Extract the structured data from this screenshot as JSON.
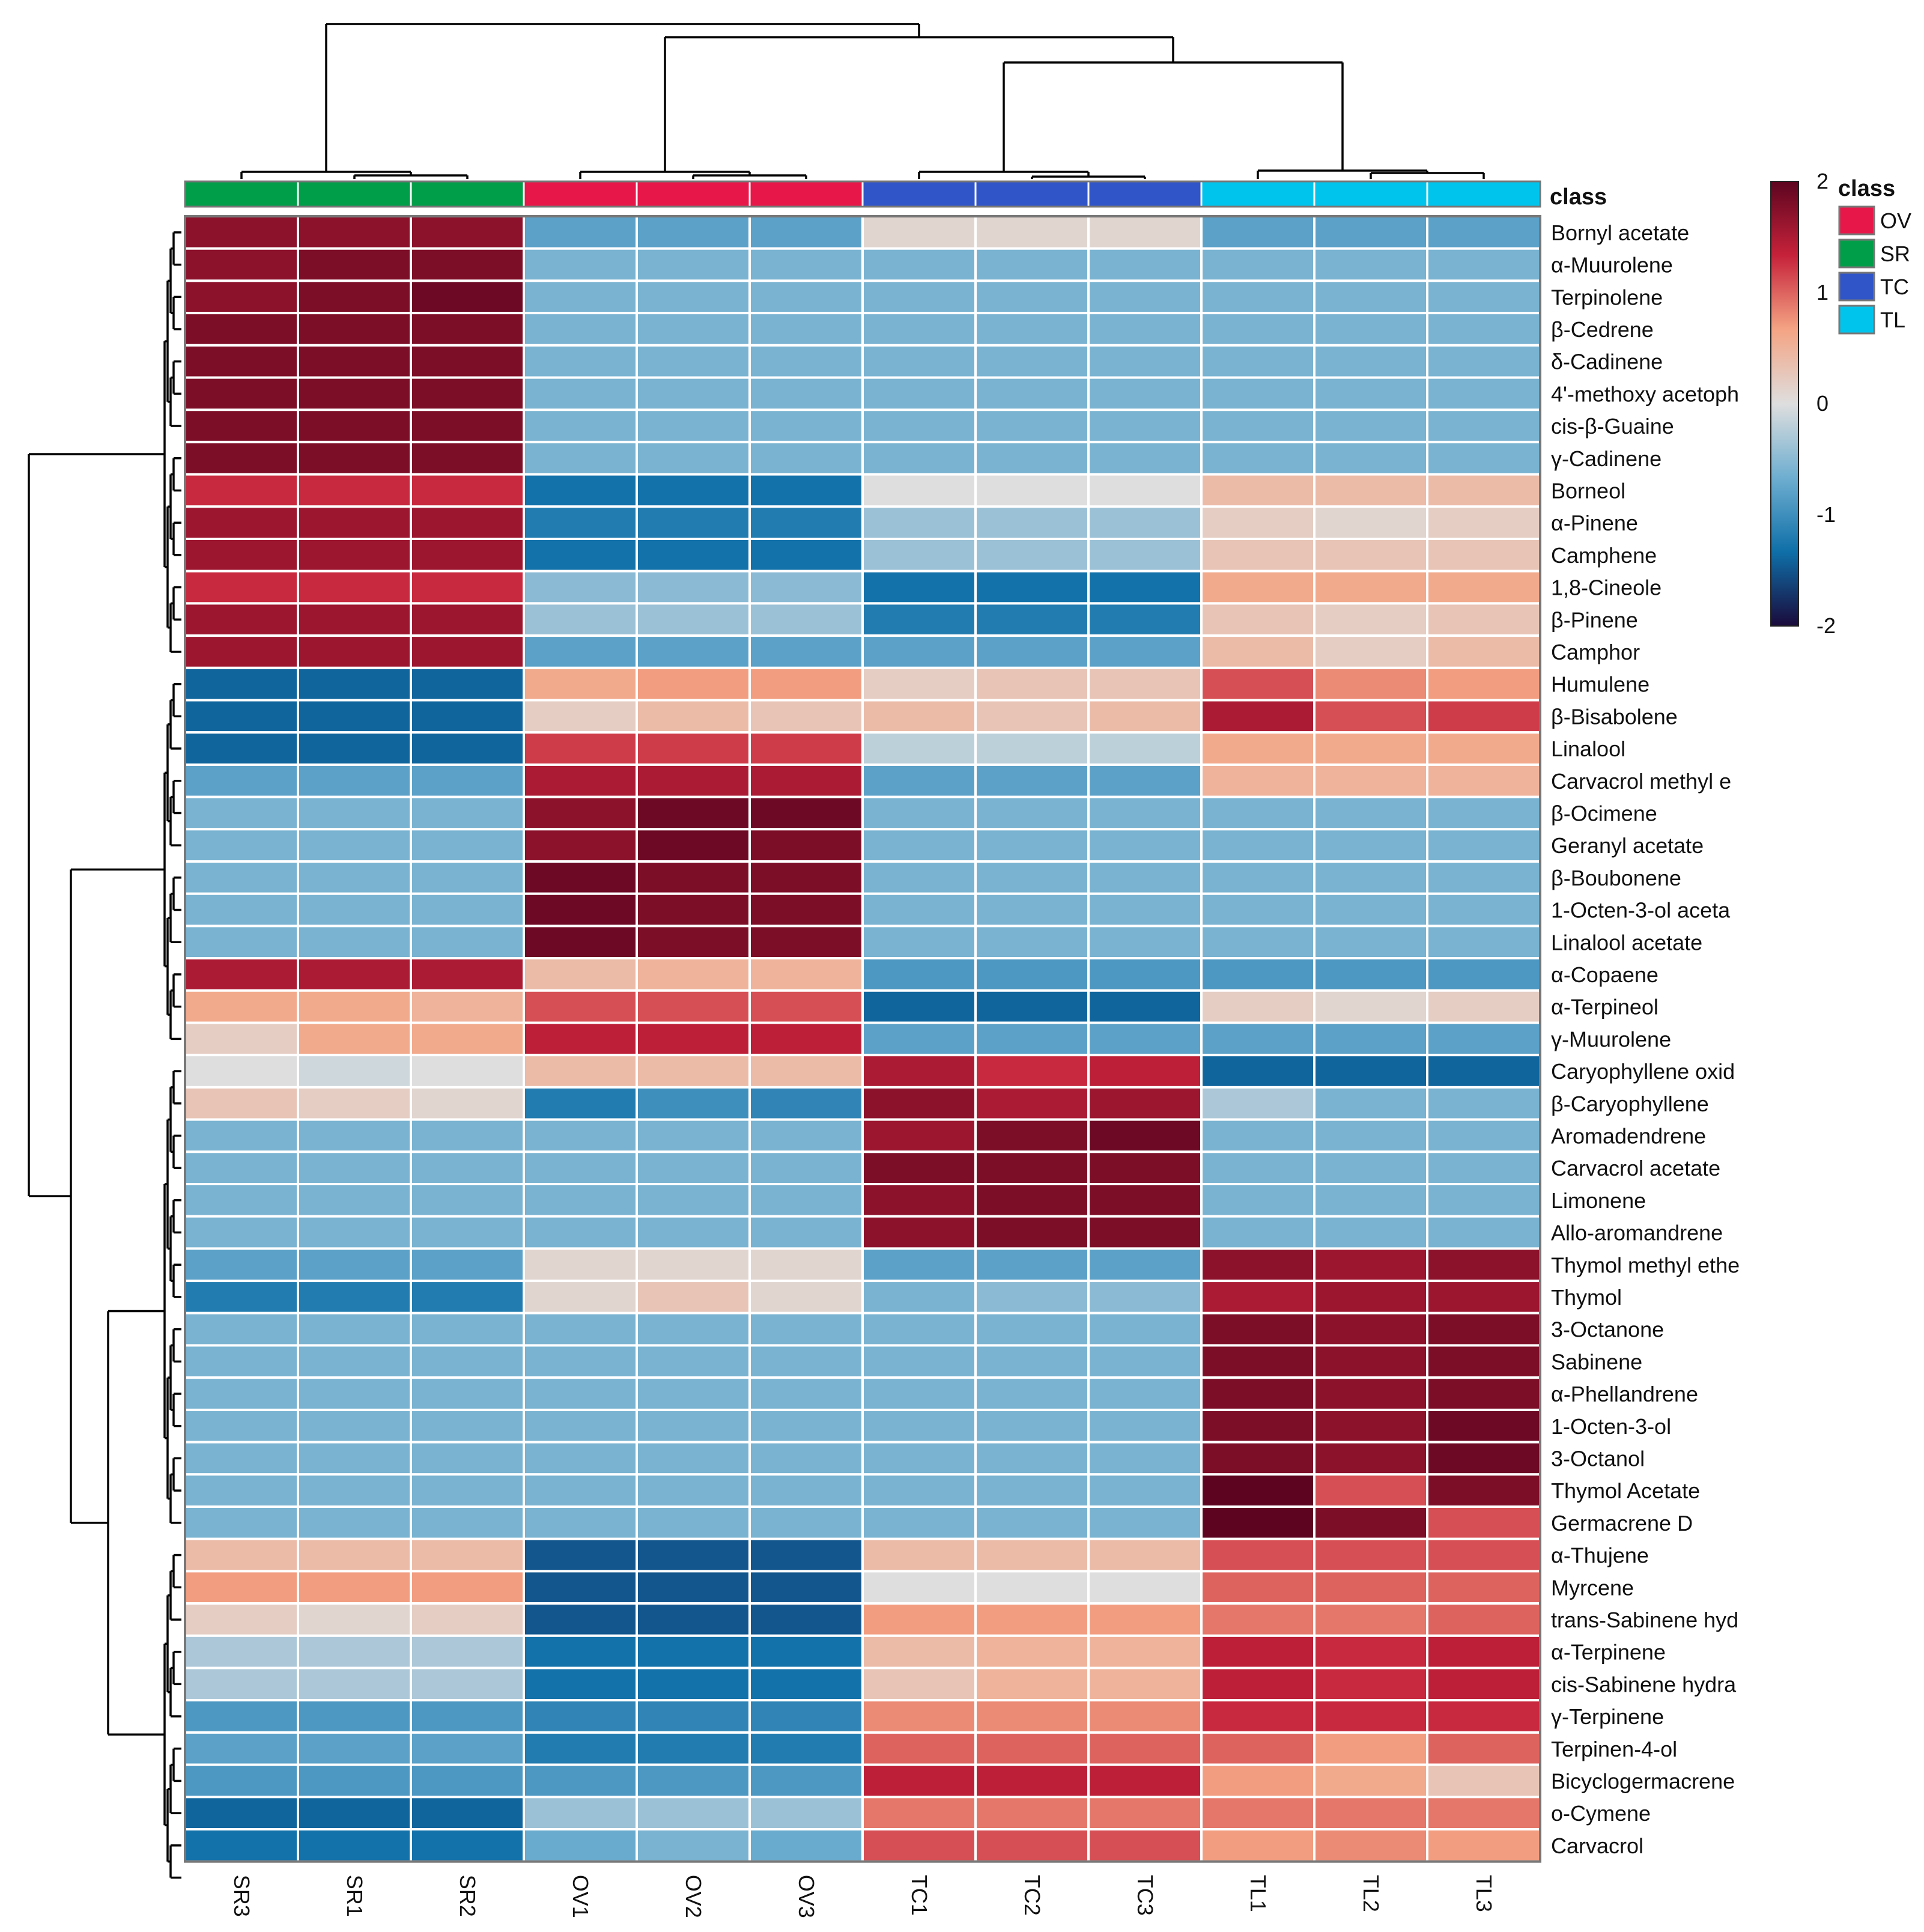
{
  "chart_data": {
    "type": "heatmap",
    "title": "",
    "xlabel": "",
    "ylabel": "",
    "class_annotation_label": "class",
    "columns": [
      "SR3",
      "SR1",
      "SR2",
      "OV1",
      "OV2",
      "OV3",
      "TC1",
      "TC2",
      "TC3",
      "TL1",
      "TL2",
      "TL3"
    ],
    "column_classes": [
      "SR",
      "SR",
      "SR",
      "OV",
      "OV",
      "OV",
      "TC",
      "TC",
      "TC",
      "TL",
      "TL",
      "TL"
    ],
    "class_legend": {
      "title": "class",
      "entries": [
        {
          "name": "OV",
          "color": "#e8174a"
        },
        {
          "name": "SR",
          "color": "#009e49"
        },
        {
          "name": "TC",
          "color": "#3055c8"
        },
        {
          "name": "TL",
          "color": "#00c4ec"
        }
      ]
    },
    "color_scale": {
      "min": -2,
      "max": 2,
      "ticks": [
        "2",
        "1",
        "0",
        "-1",
        "-2"
      ],
      "colors": [
        "#1a0a3b",
        "#0f6fa8",
        "#6eaed0",
        "#dedede",
        "#f4a484",
        "#c6223a",
        "#5d0520"
      ]
    },
    "rows": [
      {
        "name": "Bornyl acetate",
        "values": [
          1.7,
          1.7,
          1.7,
          -0.8,
          -0.8,
          -0.8,
          0.1,
          0.1,
          0.1,
          -0.8,
          -0.8,
          -0.8
        ]
      },
      {
        "name": "α-Muurolene",
        "values": [
          1.7,
          1.8,
          1.8,
          -0.6,
          -0.6,
          -0.6,
          -0.6,
          -0.6,
          -0.6,
          -0.6,
          -0.6,
          -0.6
        ]
      },
      {
        "name": "Terpinolene",
        "values": [
          1.7,
          1.8,
          1.9,
          -0.6,
          -0.6,
          -0.6,
          -0.6,
          -0.6,
          -0.6,
          -0.6,
          -0.6,
          -0.6
        ]
      },
      {
        "name": "β-Cedrene",
        "values": [
          1.8,
          1.8,
          1.8,
          -0.6,
          -0.6,
          -0.6,
          -0.6,
          -0.6,
          -0.6,
          -0.6,
          -0.6,
          -0.6
        ]
      },
      {
        "name": "δ-Cadinene",
        "values": [
          1.8,
          1.8,
          1.8,
          -0.6,
          -0.6,
          -0.6,
          -0.6,
          -0.6,
          -0.6,
          -0.6,
          -0.6,
          -0.6
        ]
      },
      {
        "name": "4'-methoxy acetoph",
        "values": [
          1.8,
          1.8,
          1.8,
          -0.6,
          -0.6,
          -0.6,
          -0.6,
          -0.6,
          -0.6,
          -0.6,
          -0.6,
          -0.6
        ]
      },
      {
        "name": "cis-β-Guaine",
        "values": [
          1.8,
          1.8,
          1.8,
          -0.6,
          -0.6,
          -0.6,
          -0.6,
          -0.6,
          -0.6,
          -0.6,
          -0.6,
          -0.6
        ]
      },
      {
        "name": "γ-Cadinene",
        "values": [
          1.8,
          1.8,
          1.8,
          -0.6,
          -0.6,
          -0.6,
          -0.6,
          -0.6,
          -0.6,
          -0.6,
          -0.6,
          -0.6
        ]
      },
      {
        "name": "Borneol",
        "values": [
          1.3,
          1.3,
          1.3,
          -1.3,
          -1.3,
          -1.3,
          0.0,
          0.0,
          0.0,
          0.4,
          0.4,
          0.4
        ]
      },
      {
        "name": "α-Pinene",
        "values": [
          1.6,
          1.6,
          1.6,
          -1.2,
          -1.2,
          -1.2,
          -0.4,
          -0.4,
          -0.4,
          0.2,
          0.1,
          0.2
        ]
      },
      {
        "name": "Camphene",
        "values": [
          1.6,
          1.6,
          1.6,
          -1.3,
          -1.3,
          -1.3,
          -0.4,
          -0.4,
          -0.4,
          0.3,
          0.3,
          0.3
        ]
      },
      {
        "name": "1,8-Cineole",
        "values": [
          1.3,
          1.3,
          1.3,
          -0.5,
          -0.5,
          -0.5,
          -1.3,
          -1.3,
          -1.3,
          0.6,
          0.6,
          0.6
        ]
      },
      {
        "name": "β-Pinene",
        "values": [
          1.6,
          1.6,
          1.6,
          -0.4,
          -0.4,
          -0.4,
          -1.2,
          -1.2,
          -1.2,
          0.3,
          0.2,
          0.3
        ]
      },
      {
        "name": "Camphor",
        "values": [
          1.6,
          1.6,
          1.6,
          -0.8,
          -0.8,
          -0.8,
          -0.8,
          -0.8,
          -0.8,
          0.4,
          0.2,
          0.4
        ]
      },
      {
        "name": "Humulene",
        "values": [
          -1.4,
          -1.4,
          -1.4,
          0.6,
          0.7,
          0.7,
          0.2,
          0.3,
          0.3,
          1.1,
          0.8,
          0.7
        ]
      },
      {
        "name": "β-Bisabolene",
        "values": [
          -1.4,
          -1.4,
          -1.4,
          0.2,
          0.4,
          0.3,
          0.4,
          0.3,
          0.4,
          1.5,
          1.1,
          1.2
        ]
      },
      {
        "name": "Linalool",
        "values": [
          -1.4,
          -1.4,
          -1.4,
          1.2,
          1.2,
          1.2,
          -0.2,
          -0.2,
          -0.2,
          0.6,
          0.6,
          0.6
        ]
      },
      {
        "name": "Carvacrol methyl e",
        "values": [
          -0.8,
          -0.8,
          -0.8,
          1.5,
          1.5,
          1.5,
          -0.8,
          -0.8,
          -0.8,
          0.5,
          0.5,
          0.5
        ]
      },
      {
        "name": "β-Ocimene",
        "values": [
          -0.6,
          -0.6,
          -0.6,
          1.7,
          1.9,
          1.9,
          -0.6,
          -0.6,
          -0.6,
          -0.6,
          -0.6,
          -0.6
        ]
      },
      {
        "name": "Geranyl acetate",
        "values": [
          -0.6,
          -0.6,
          -0.6,
          1.7,
          1.9,
          1.8,
          -0.6,
          -0.6,
          -0.6,
          -0.6,
          -0.6,
          -0.6
        ]
      },
      {
        "name": "β-Boubonene",
        "values": [
          -0.6,
          -0.6,
          -0.6,
          1.9,
          1.8,
          1.8,
          -0.6,
          -0.6,
          -0.6,
          -0.6,
          -0.6,
          -0.6
        ]
      },
      {
        "name": "1-Octen-3-ol aceta",
        "values": [
          -0.6,
          -0.6,
          -0.6,
          1.9,
          1.8,
          1.8,
          -0.6,
          -0.6,
          -0.6,
          -0.6,
          -0.6,
          -0.6
        ]
      },
      {
        "name": "Linalool acetate",
        "values": [
          -0.6,
          -0.6,
          -0.6,
          1.9,
          1.8,
          1.8,
          -0.6,
          -0.6,
          -0.6,
          -0.6,
          -0.6,
          -0.6
        ]
      },
      {
        "name": "α-Copaene",
        "values": [
          1.5,
          1.5,
          1.5,
          0.4,
          0.5,
          0.5,
          -0.9,
          -0.9,
          -0.9,
          -0.9,
          -0.9,
          -0.9
        ]
      },
      {
        "name": "α-Terpineol",
        "values": [
          0.6,
          0.6,
          0.5,
          1.1,
          1.1,
          1.1,
          -1.4,
          -1.4,
          -1.4,
          0.2,
          0.1,
          0.2
        ]
      },
      {
        "name": "γ-Muurolene",
        "values": [
          0.2,
          0.6,
          0.6,
          1.4,
          1.4,
          1.4,
          -0.8,
          -0.8,
          -0.8,
          -0.8,
          -0.8,
          -0.8
        ]
      },
      {
        "name": "Caryophyllene oxid",
        "values": [
          0.0,
          -0.1,
          0.0,
          0.4,
          0.4,
          0.4,
          1.5,
          1.3,
          1.4,
          -1.4,
          -1.4,
          -1.4
        ]
      },
      {
        "name": "β-Caryophyllene",
        "values": [
          0.3,
          0.2,
          0.1,
          -1.2,
          -1.0,
          -1.1,
          1.7,
          1.5,
          1.6,
          -0.3,
          -0.6,
          -0.6
        ]
      },
      {
        "name": "Aromadendrene",
        "values": [
          -0.6,
          -0.6,
          -0.6,
          -0.6,
          -0.6,
          -0.6,
          1.6,
          1.8,
          1.9,
          -0.6,
          -0.6,
          -0.6
        ]
      },
      {
        "name": "Carvacrol acetate",
        "values": [
          -0.6,
          -0.6,
          -0.6,
          -0.6,
          -0.6,
          -0.6,
          1.8,
          1.8,
          1.8,
          -0.6,
          -0.6,
          -0.6
        ]
      },
      {
        "name": "Limonene",
        "values": [
          -0.6,
          -0.6,
          -0.6,
          -0.6,
          -0.6,
          -0.6,
          1.7,
          1.8,
          1.8,
          -0.6,
          -0.6,
          -0.6
        ]
      },
      {
        "name": "Allo-aromandrene",
        "values": [
          -0.6,
          -0.6,
          -0.6,
          -0.6,
          -0.6,
          -0.6,
          1.7,
          1.8,
          1.8,
          -0.6,
          -0.6,
          -0.6
        ]
      },
      {
        "name": "Thymol methyl ethe",
        "values": [
          -0.8,
          -0.8,
          -0.8,
          0.1,
          0.1,
          0.1,
          -0.8,
          -0.8,
          -0.8,
          1.7,
          1.6,
          1.7
        ]
      },
      {
        "name": "Thymol",
        "values": [
          -1.2,
          -1.2,
          -1.2,
          0.1,
          0.3,
          0.1,
          -0.6,
          -0.5,
          -0.5,
          1.5,
          1.6,
          1.6
        ]
      },
      {
        "name": "3-Octanone",
        "values": [
          -0.6,
          -0.6,
          -0.6,
          -0.6,
          -0.6,
          -0.6,
          -0.6,
          -0.6,
          -0.6,
          1.8,
          1.7,
          1.8
        ]
      },
      {
        "name": "Sabinene",
        "values": [
          -0.6,
          -0.6,
          -0.6,
          -0.6,
          -0.6,
          -0.6,
          -0.6,
          -0.6,
          -0.6,
          1.8,
          1.7,
          1.8
        ]
      },
      {
        "name": "α-Phellandrene",
        "values": [
          -0.6,
          -0.6,
          -0.6,
          -0.6,
          -0.6,
          -0.6,
          -0.6,
          -0.6,
          -0.6,
          1.8,
          1.7,
          1.8
        ]
      },
      {
        "name": "1-Octen-3-ol",
        "values": [
          -0.6,
          -0.6,
          -0.6,
          -0.6,
          -0.6,
          -0.6,
          -0.6,
          -0.6,
          -0.6,
          1.8,
          1.7,
          1.9
        ]
      },
      {
        "name": "3-Octanol",
        "values": [
          -0.6,
          -0.6,
          -0.6,
          -0.6,
          -0.6,
          -0.6,
          -0.6,
          -0.6,
          -0.6,
          1.8,
          1.7,
          1.9
        ]
      },
      {
        "name": "Thymol Acetate",
        "values": [
          -0.6,
          -0.6,
          -0.6,
          -0.6,
          -0.6,
          -0.6,
          -0.6,
          -0.6,
          -0.6,
          2.0,
          1.1,
          1.8
        ]
      },
      {
        "name": "Germacrene D",
        "values": [
          -0.6,
          -0.6,
          -0.6,
          -0.6,
          -0.6,
          -0.6,
          -0.6,
          -0.6,
          -0.6,
          2.0,
          1.8,
          1.1
        ]
      },
      {
        "name": "α-Thujene",
        "values": [
          0.4,
          0.4,
          0.4,
          -1.5,
          -1.5,
          -1.5,
          0.4,
          0.4,
          0.4,
          1.1,
          1.1,
          1.1
        ]
      },
      {
        "name": "Myrcene",
        "values": [
          0.7,
          0.7,
          0.7,
          -1.5,
          -1.5,
          -1.5,
          0.0,
          0.0,
          0.0,
          1.0,
          1.0,
          1.0
        ]
      },
      {
        "name": "trans-Sabinene hyd",
        "values": [
          0.2,
          0.1,
          0.2,
          -1.5,
          -1.5,
          -1.5,
          0.7,
          0.7,
          0.7,
          0.9,
          0.9,
          1.0
        ]
      },
      {
        "name": "α-Terpinene",
        "values": [
          -0.3,
          -0.3,
          -0.3,
          -1.3,
          -1.3,
          -1.3,
          0.4,
          0.5,
          0.5,
          1.4,
          1.3,
          1.4
        ]
      },
      {
        "name": "cis-Sabinene hydra",
        "values": [
          -0.3,
          -0.3,
          -0.3,
          -1.3,
          -1.3,
          -1.3,
          0.3,
          0.5,
          0.5,
          1.4,
          1.3,
          1.4
        ]
      },
      {
        "name": "γ-Terpinene",
        "values": [
          -0.9,
          -0.9,
          -0.9,
          -1.1,
          -1.1,
          -1.1,
          0.8,
          0.8,
          0.8,
          1.3,
          1.3,
          1.3
        ]
      },
      {
        "name": "Terpinen-4-ol",
        "values": [
          -0.8,
          -0.8,
          -0.8,
          -1.2,
          -1.2,
          -1.2,
          1.0,
          1.0,
          1.0,
          1.0,
          0.7,
          1.0
        ]
      },
      {
        "name": "Bicyclogermacrene",
        "values": [
          -0.9,
          -0.9,
          -0.9,
          -0.9,
          -0.9,
          -0.9,
          1.4,
          1.4,
          1.4,
          0.7,
          0.6,
          0.3
        ]
      },
      {
        "name": "o-Cymene",
        "values": [
          -1.4,
          -1.4,
          -1.4,
          -0.4,
          -0.4,
          -0.4,
          0.9,
          0.9,
          0.9,
          0.9,
          0.9,
          0.9
        ]
      },
      {
        "name": "Carvacrol",
        "values": [
          -1.3,
          -1.3,
          -1.3,
          -0.7,
          -0.6,
          -0.7,
          1.1,
          1.1,
          1.1,
          0.7,
          0.8,
          0.7
        ]
      }
    ],
    "column_dendrogram_order_note": "SR | (OV | (TC | TL))",
    "row_dendrogram_groups": [
      "rows 1-14",
      "rows 15-26",
      "rows 27-41",
      "rows 42-52"
    ]
  }
}
